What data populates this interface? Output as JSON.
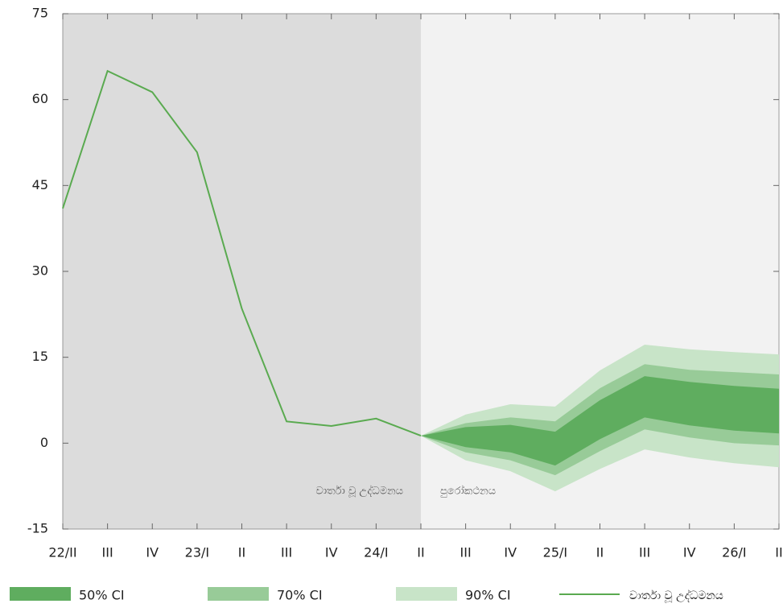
{
  "chart_data": {
    "type": "fan",
    "categories": [
      "22/II",
      "III",
      "IV",
      "23/I",
      "II",
      "III",
      "IV",
      "24/I",
      "II",
      "III",
      "IV",
      "25/I",
      "II",
      "III",
      "IV",
      "26/I",
      "II"
    ],
    "series": [
      {
        "name": "වාර්තා වූ උද්ධමනය",
        "color": "#5aaa50",
        "values": [
          41,
          65,
          61.3,
          50.8,
          23.5,
          3.8,
          3.0,
          4.3,
          1.3,
          null,
          null,
          null,
          null,
          null,
          null,
          null,
          null
        ]
      }
    ],
    "bands": [
      {
        "name": "90% CI",
        "color": "#c8e4c8",
        "upper": [
          null,
          null,
          null,
          null,
          null,
          null,
          null,
          null,
          1.3,
          5.0,
          6.8,
          6.4,
          12.7,
          17.2,
          16.4,
          15.9,
          15.5
        ],
        "lower": [
          null,
          null,
          null,
          null,
          null,
          null,
          null,
          null,
          1.3,
          -3.0,
          -4.9,
          -8.4,
          -4.5,
          -1.1,
          -2.5,
          -3.5,
          -4.2
        ]
      },
      {
        "name": "70% CI",
        "color": "#98cb98",
        "upper": [
          null,
          null,
          null,
          null,
          null,
          null,
          null,
          null,
          1.3,
          3.5,
          4.5,
          3.8,
          9.6,
          13.8,
          12.8,
          12.4,
          12.0
        ],
        "lower": [
          null,
          null,
          null,
          null,
          null,
          null,
          null,
          null,
          1.3,
          -1.6,
          -3.0,
          -5.6,
          -1.4,
          2.4,
          1.0,
          0,
          -0.4
        ]
      },
      {
        "name": "50% CI",
        "color": "#5fad5f",
        "upper": [
          null,
          null,
          null,
          null,
          null,
          null,
          null,
          null,
          1.3,
          2.8,
          3.2,
          2.0,
          7.5,
          11.7,
          10.7,
          10.0,
          9.5
        ],
        "lower": [
          null,
          null,
          null,
          null,
          null,
          null,
          null,
          null,
          1.3,
          -0.7,
          -1.6,
          -3.9,
          0.7,
          4.5,
          3.1,
          2.2,
          1.7
        ]
      }
    ],
    "annotations": [
      "වාර්තා වූ උද්ධමනය",
      "පුරෝකථනය"
    ],
    "ylim": [
      -15,
      75
    ],
    "yticks": [
      -15,
      0,
      15,
      30,
      45,
      60,
      75
    ]
  }
}
